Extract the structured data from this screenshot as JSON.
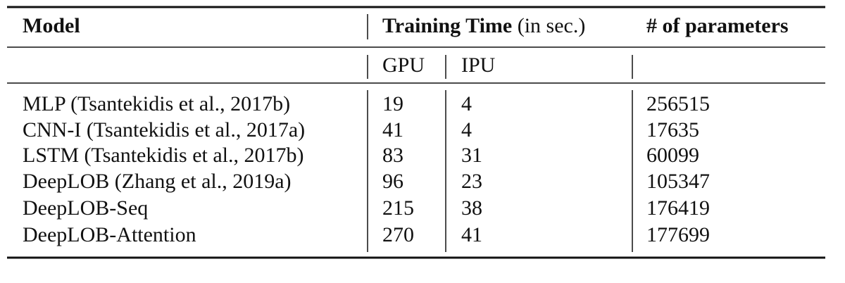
{
  "table": {
    "header": {
      "model": "Model",
      "training_time": "Training Time",
      "training_time_unit": "(in sec.)",
      "parameters": "# of parameters"
    },
    "subheader": {
      "gpu": "GPU",
      "ipu": "IPU"
    },
    "rows": [
      [
        "MLP (Tsantekidis et al., 2017b)",
        19,
        4,
        256515
      ],
      [
        "CNN-I (Tsantekidis et al., 2017a)",
        41,
        4,
        17635
      ],
      [
        "LSTM (Tsantekidis et al., 2017b)",
        83,
        31,
        60099
      ],
      [
        "DeepLOB (Zhang et al., 2019a)",
        96,
        23,
        105347
      ],
      [
        "DeepLOB-Seq",
        215,
        38,
        176419
      ],
      [
        "DeepLOB-Attention",
        270,
        41,
        177699
      ]
    ]
  }
}
